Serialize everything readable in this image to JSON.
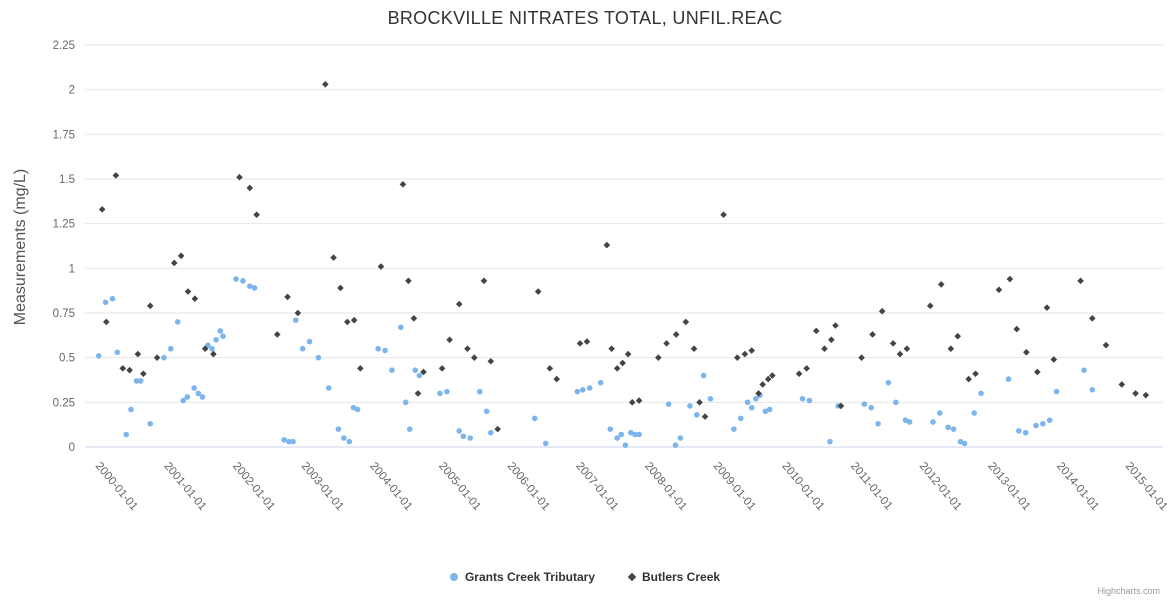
{
  "credit": {
    "label": "Highcharts.com"
  },
  "chart_data": {
    "type": "scatter",
    "title": "BROCKVILLE NITRATES TOTAL, UNFIL.REAC",
    "xlabel": "",
    "ylabel": "Measurements (mg/L)",
    "ylim": [
      0,
      2.25
    ],
    "xlim": [
      1999.65,
      2015.35
    ],
    "grid": true,
    "legend_position": "bottom",
    "grid_color": "#e6e6e6",
    "axis_line_color": "#ccd6eb",
    "axis_label_color": "#666666",
    "title_color": "#333333",
    "y_ticks": [
      0,
      0.25,
      0.5,
      0.75,
      1,
      1.25,
      1.5,
      1.75,
      2,
      2.25
    ],
    "y_tick_labels": [
      "0",
      "0.25",
      "0.5",
      "0.75",
      "1",
      "1.25",
      "1.5",
      "1.75",
      "2",
      "2.25"
    ],
    "x_ticks": [
      2000,
      2001,
      2002,
      2003,
      2004,
      2005,
      2006,
      2007,
      2008,
      2009,
      2010,
      2011,
      2012,
      2013,
      2014,
      2015
    ],
    "x_tick_labels": [
      "2000-01-01",
      "2001-01-01",
      "2002-01-01",
      "2003-01-01",
      "2004-01-01",
      "2005-01-01",
      "2006-01-01",
      "2007-01-01",
      "2008-01-01",
      "2009-01-01",
      "2010-01-01",
      "2011-01-01",
      "2012-01-01",
      "2013-01-01",
      "2014-01-01",
      "2015-01-01"
    ],
    "series": [
      {
        "name": "Grants Creek Tributary",
        "marker": "circle",
        "color": "#7cb5ec",
        "points": [
          [
            1999.85,
            0.51
          ],
          [
            1999.95,
            0.81
          ],
          [
            2000.05,
            0.83
          ],
          [
            2000.12,
            0.53
          ],
          [
            2000.25,
            0.07
          ],
          [
            2000.32,
            0.21
          ],
          [
            2000.4,
            0.37
          ],
          [
            2000.46,
            0.37
          ],
          [
            2000.6,
            0.13
          ],
          [
            2000.8,
            0.5
          ],
          [
            2000.9,
            0.55
          ],
          [
            2001.0,
            0.7
          ],
          [
            2001.08,
            0.26
          ],
          [
            2001.14,
            0.28
          ],
          [
            2001.24,
            0.33
          ],
          [
            2001.3,
            0.3
          ],
          [
            2001.36,
            0.28
          ],
          [
            2001.44,
            0.57
          ],
          [
            2001.5,
            0.55
          ],
          [
            2001.56,
            0.6
          ],
          [
            2001.62,
            0.65
          ],
          [
            2001.66,
            0.62
          ],
          [
            2001.85,
            0.94
          ],
          [
            2001.95,
            0.93
          ],
          [
            2002.05,
            0.9
          ],
          [
            2002.12,
            0.89
          ],
          [
            2002.55,
            0.04
          ],
          [
            2002.62,
            0.03
          ],
          [
            2002.68,
            0.03
          ],
          [
            2002.72,
            0.71
          ],
          [
            2002.82,
            0.55
          ],
          [
            2002.92,
            0.59
          ],
          [
            2003.05,
            0.5
          ],
          [
            2003.2,
            0.33
          ],
          [
            2003.34,
            0.1
          ],
          [
            2003.42,
            0.05
          ],
          [
            2003.5,
            0.03
          ],
          [
            2003.56,
            0.22
          ],
          [
            2003.62,
            0.21
          ],
          [
            2003.92,
            0.55
          ],
          [
            2004.02,
            0.54
          ],
          [
            2004.12,
            0.43
          ],
          [
            2004.25,
            0.67
          ],
          [
            2004.32,
            0.25
          ],
          [
            2004.38,
            0.1
          ],
          [
            2004.46,
            0.43
          ],
          [
            2004.52,
            0.4
          ],
          [
            2004.82,
            0.3
          ],
          [
            2004.92,
            0.31
          ],
          [
            2005.1,
            0.09
          ],
          [
            2005.16,
            0.06
          ],
          [
            2005.26,
            0.05
          ],
          [
            2005.4,
            0.31
          ],
          [
            2005.5,
            0.2
          ],
          [
            2005.56,
            0.08
          ],
          [
            2006.2,
            0.16
          ],
          [
            2006.36,
            0.02
          ],
          [
            2006.82,
            0.31
          ],
          [
            2006.9,
            0.32
          ],
          [
            2007.0,
            0.33
          ],
          [
            2007.16,
            0.36
          ],
          [
            2007.3,
            0.1
          ],
          [
            2007.4,
            0.05
          ],
          [
            2007.46,
            0.07
          ],
          [
            2007.52,
            0.01
          ],
          [
            2007.6,
            0.08
          ],
          [
            2007.66,
            0.07
          ],
          [
            2007.72,
            0.07
          ],
          [
            2008.15,
            0.24
          ],
          [
            2008.25,
            0.01
          ],
          [
            2008.32,
            0.05
          ],
          [
            2008.46,
            0.23
          ],
          [
            2008.56,
            0.18
          ],
          [
            2008.66,
            0.4
          ],
          [
            2008.76,
            0.27
          ],
          [
            2009.1,
            0.1
          ],
          [
            2009.2,
            0.16
          ],
          [
            2009.3,
            0.25
          ],
          [
            2009.36,
            0.22
          ],
          [
            2009.42,
            0.27
          ],
          [
            2009.48,
            0.29
          ],
          [
            2009.56,
            0.2
          ],
          [
            2009.62,
            0.21
          ],
          [
            2010.1,
            0.27
          ],
          [
            2010.2,
            0.26
          ],
          [
            2010.5,
            0.03
          ],
          [
            2010.62,
            0.23
          ],
          [
            2011.0,
            0.24
          ],
          [
            2011.1,
            0.22
          ],
          [
            2011.2,
            0.13
          ],
          [
            2011.35,
            0.36
          ],
          [
            2011.46,
            0.25
          ],
          [
            2011.6,
            0.15
          ],
          [
            2011.66,
            0.14
          ],
          [
            2012.0,
            0.14
          ],
          [
            2012.1,
            0.19
          ],
          [
            2012.22,
            0.11
          ],
          [
            2012.3,
            0.1
          ],
          [
            2012.4,
            0.03
          ],
          [
            2012.46,
            0.02
          ],
          [
            2012.6,
            0.19
          ],
          [
            2012.7,
            0.3
          ],
          [
            2013.1,
            0.38
          ],
          [
            2013.25,
            0.09
          ],
          [
            2013.35,
            0.08
          ],
          [
            2013.5,
            0.12
          ],
          [
            2013.6,
            0.13
          ],
          [
            2013.7,
            0.15
          ],
          [
            2013.8,
            0.31
          ],
          [
            2014.2,
            0.43
          ],
          [
            2014.32,
            0.32
          ]
        ]
      },
      {
        "name": "Butlers Creek",
        "marker": "diamond",
        "color": "#434348",
        "points": [
          [
            1999.9,
            1.33
          ],
          [
            1999.96,
            0.7
          ],
          [
            2000.1,
            1.52
          ],
          [
            2000.2,
            0.44
          ],
          [
            2000.3,
            0.43
          ],
          [
            2000.42,
            0.52
          ],
          [
            2000.5,
            0.41
          ],
          [
            2000.6,
            0.79
          ],
          [
            2000.7,
            0.5
          ],
          [
            2000.95,
            1.03
          ],
          [
            2001.05,
            1.07
          ],
          [
            2001.15,
            0.87
          ],
          [
            2001.25,
            0.83
          ],
          [
            2001.4,
            0.55
          ],
          [
            2001.52,
            0.52
          ],
          [
            2001.9,
            1.51
          ],
          [
            2002.05,
            1.45
          ],
          [
            2002.15,
            1.3
          ],
          [
            2002.45,
            0.63
          ],
          [
            2002.6,
            0.84
          ],
          [
            2002.75,
            0.75
          ],
          [
            2003.15,
            2.03
          ],
          [
            2003.27,
            1.06
          ],
          [
            2003.37,
            0.89
          ],
          [
            2003.47,
            0.7
          ],
          [
            2003.57,
            0.71
          ],
          [
            2003.66,
            0.44
          ],
          [
            2003.96,
            1.01
          ],
          [
            2004.28,
            1.47
          ],
          [
            2004.36,
            0.93
          ],
          [
            2004.44,
            0.72
          ],
          [
            2004.5,
            0.3
          ],
          [
            2004.58,
            0.42
          ],
          [
            2004.85,
            0.44
          ],
          [
            2004.96,
            0.6
          ],
          [
            2005.1,
            0.8
          ],
          [
            2005.22,
            0.55
          ],
          [
            2005.32,
            0.5
          ],
          [
            2005.46,
            0.93
          ],
          [
            2005.56,
            0.48
          ],
          [
            2005.66,
            0.1
          ],
          [
            2006.25,
            0.87
          ],
          [
            2006.42,
            0.44
          ],
          [
            2006.52,
            0.38
          ],
          [
            2006.86,
            0.58
          ],
          [
            2006.96,
            0.59
          ],
          [
            2007.25,
            1.13
          ],
          [
            2007.32,
            0.55
          ],
          [
            2007.4,
            0.44
          ],
          [
            2007.48,
            0.47
          ],
          [
            2007.56,
            0.52
          ],
          [
            2007.62,
            0.25
          ],
          [
            2007.72,
            0.26
          ],
          [
            2008.0,
            0.5
          ],
          [
            2008.12,
            0.58
          ],
          [
            2008.26,
            0.63
          ],
          [
            2008.4,
            0.7
          ],
          [
            2008.52,
            0.55
          ],
          [
            2008.6,
            0.25
          ],
          [
            2008.68,
            0.17
          ],
          [
            2008.95,
            1.3
          ],
          [
            2009.15,
            0.5
          ],
          [
            2009.26,
            0.52
          ],
          [
            2009.36,
            0.54
          ],
          [
            2009.46,
            0.3
          ],
          [
            2009.52,
            0.35
          ],
          [
            2009.6,
            0.38
          ],
          [
            2009.66,
            0.4
          ],
          [
            2010.05,
            0.41
          ],
          [
            2010.16,
            0.44
          ],
          [
            2010.3,
            0.65
          ],
          [
            2010.42,
            0.55
          ],
          [
            2010.52,
            0.6
          ],
          [
            2010.58,
            0.68
          ],
          [
            2010.66,
            0.23
          ],
          [
            2010.96,
            0.5
          ],
          [
            2011.12,
            0.63
          ],
          [
            2011.26,
            0.76
          ],
          [
            2011.42,
            0.58
          ],
          [
            2011.52,
            0.52
          ],
          [
            2011.62,
            0.55
          ],
          [
            2011.96,
            0.79
          ],
          [
            2012.12,
            0.91
          ],
          [
            2012.26,
            0.55
          ],
          [
            2012.36,
            0.62
          ],
          [
            2012.52,
            0.38
          ],
          [
            2012.62,
            0.41
          ],
          [
            2012.96,
            0.88
          ],
          [
            2013.12,
            0.94
          ],
          [
            2013.22,
            0.66
          ],
          [
            2013.36,
            0.53
          ],
          [
            2013.52,
            0.42
          ],
          [
            2013.66,
            0.78
          ],
          [
            2013.76,
            0.49
          ],
          [
            2014.15,
            0.93
          ],
          [
            2014.32,
            0.72
          ],
          [
            2014.52,
            0.57
          ],
          [
            2014.75,
            0.35
          ],
          [
            2014.95,
            0.3
          ],
          [
            2015.1,
            0.29
          ]
        ]
      }
    ]
  }
}
